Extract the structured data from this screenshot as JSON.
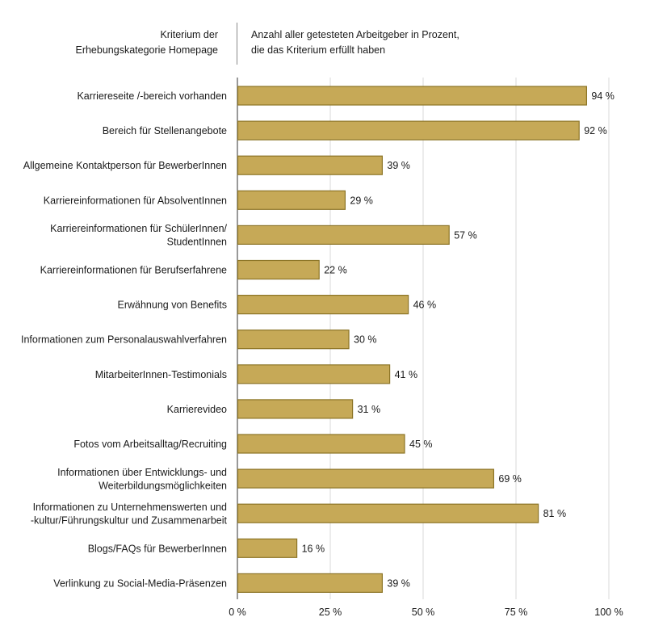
{
  "header": {
    "left_lines": [
      "Kriterium der",
      "Erhebungskategorie Homepage"
    ],
    "right_lines": [
      "Anzahl aller getesteten Arbeitgeber in Prozent,",
      "die das Kriterium erfüllt haben"
    ]
  },
  "colors": {
    "bar_fill": "#c6a957",
    "bar_stroke": "#8c7426",
    "grid": "#d9d9d9",
    "axis": "#333333"
  },
  "chart_data": {
    "type": "bar",
    "orientation": "horizontal",
    "categories": [
      [
        "Karriereseite /-bereich vorhanden"
      ],
      [
        "Bereich für Stellenangebote"
      ],
      [
        "Allgemeine Kontaktperson für BewerberInnen"
      ],
      [
        "Karriereinformationen für AbsolventInnen"
      ],
      [
        "Karriereinformationen für SchülerInnen/",
        "StudentInnen"
      ],
      [
        "Karriereinformationen für Berufserfahrene"
      ],
      [
        "Erwähnung von Benefits"
      ],
      [
        "Informationen zum Personalauswahlverfahren"
      ],
      [
        "MitarbeiterInnen-Testimonials"
      ],
      [
        "Karrierevideo"
      ],
      [
        "Fotos vom Arbeitsalltag/Recruiting"
      ],
      [
        "Informationen über Entwicklungs- und",
        "Weiterbildungsmöglichkeiten"
      ],
      [
        "Informationen zu Unternehmenswerten und",
        "-kultur/Führungskultur und Zusammenarbeit"
      ],
      [
        "Blogs/FAQs für BewerberInnen"
      ],
      [
        "Verlinkung zu Social-Media-Präsenzen"
      ]
    ],
    "values": [
      94,
      92,
      39,
      29,
      57,
      22,
      46,
      30,
      41,
      31,
      45,
      69,
      81,
      16,
      39
    ],
    "value_labels": [
      "94 %",
      "92 %",
      "39 %",
      "29 %",
      "57 %",
      "22 %",
      "46 %",
      "30 %",
      "41 %",
      "31 %",
      "45 %",
      "69 %",
      "81 %",
      "16 %",
      "39 %"
    ],
    "xlim": [
      0,
      100
    ],
    "xticks": [
      0,
      25,
      50,
      75,
      100
    ],
    "xtick_labels": [
      "0 %",
      "25 %",
      "50 %",
      "75 %",
      "100 %"
    ],
    "grid": true
  }
}
